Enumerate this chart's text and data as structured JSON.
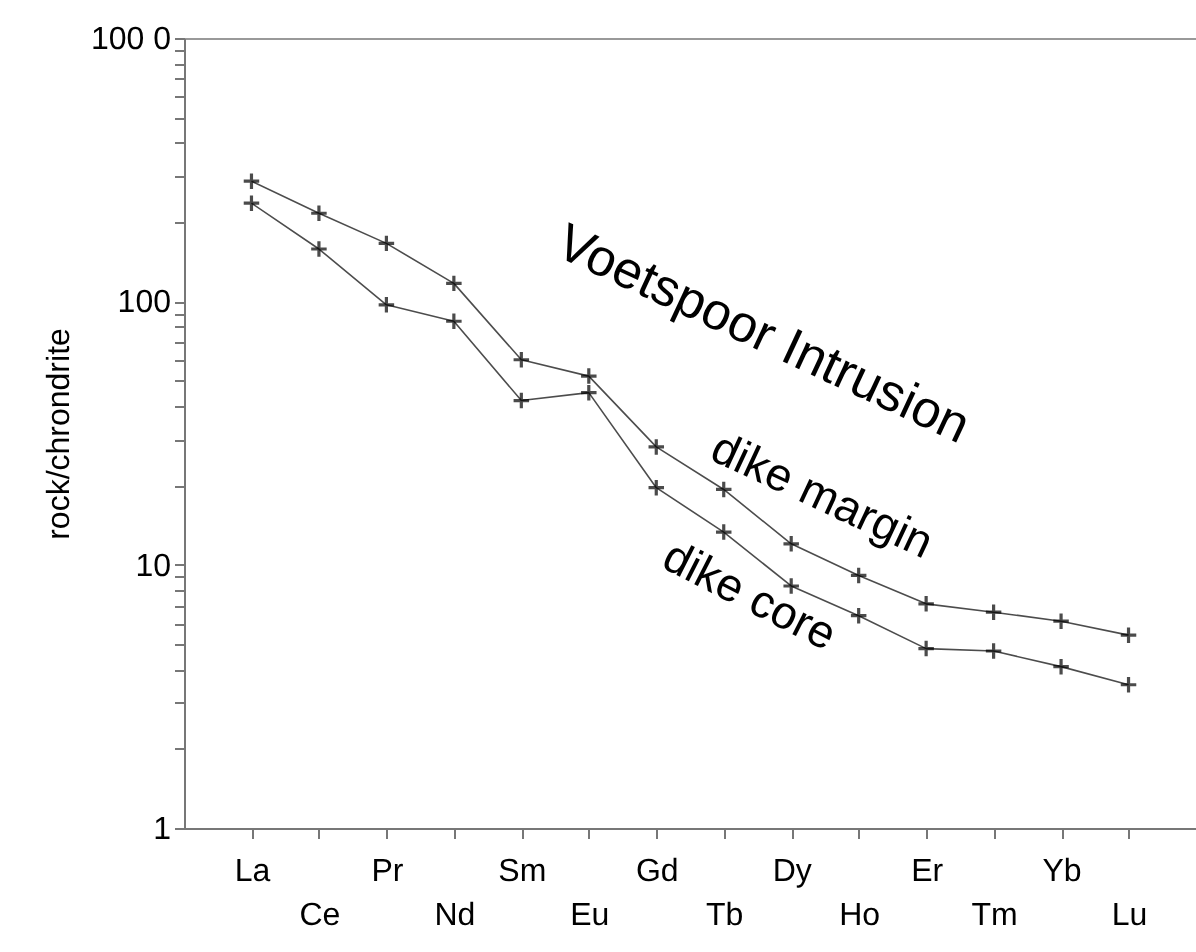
{
  "chart_data": {
    "type": "line",
    "ylabel": "rock/chrondrite",
    "annotations": [
      "Voetspoor Intrusion"
    ],
    "categories": [
      "La",
      "Ce",
      "Pr",
      "Nd",
      "Sm",
      "Eu",
      "Gd",
      "Tb",
      "Dy",
      "Ho",
      "Er",
      "Tm",
      "Yb",
      "Lu"
    ],
    "series": [
      {
        "name": "dike margin",
        "color": "#000000",
        "marker": "cross",
        "values": [
          286,
          216,
          166,
          117,
          60,
          52,
          28,
          19.3,
          12,
          9.1,
          7.1,
          6.6,
          6.1,
          5.4
        ]
      },
      {
        "name": "dike core",
        "color": "#000000",
        "marker": "cross",
        "values": [
          236,
          158,
          97,
          84,
          42,
          45,
          19.6,
          13.3,
          8.3,
          6.4,
          4.8,
          4.7,
          4.1,
          3.5
        ]
      }
    ],
    "log": "y",
    "ylim": [
      1,
      1000
    ],
    "yticks": [
      1,
      {
        "value": 2,
        "label": null
      },
      {
        "value": 3,
        "label": null
      },
      {
        "value": 4,
        "label": null
      },
      {
        "value": 5,
        "label": null
      },
      {
        "value": 6,
        "label": null
      },
      {
        "value": 7,
        "label": null
      },
      {
        "value": 8,
        "label": null
      },
      {
        "value": 9,
        "label": null
      },
      10,
      {
        "value": 20,
        "label": null
      },
      {
        "value": 30,
        "label": null
      },
      {
        "value": 40,
        "label": null
      },
      {
        "value": 50,
        "label": null
      },
      {
        "value": 60,
        "label": null
      },
      {
        "value": 70,
        "label": null
      },
      {
        "value": 80,
        "label": null
      },
      {
        "value": 90,
        "label": null
      },
      100,
      {
        "value": 200,
        "label": null
      },
      {
        "value": 300,
        "label": null
      },
      {
        "value": 400,
        "label": null
      },
      {
        "value": 500,
        "label": null
      },
      {
        "value": 600,
        "label": null
      },
      {
        "value": 700,
        "label": null
      },
      {
        "value": 800,
        "label": null
      },
      {
        "value": 900,
        "label": null
      },
      {
        "value": 1000,
        "label": "100 0"
      }
    ],
    "grid": false,
    "legend": false,
    "line_style": "solid"
  }
}
